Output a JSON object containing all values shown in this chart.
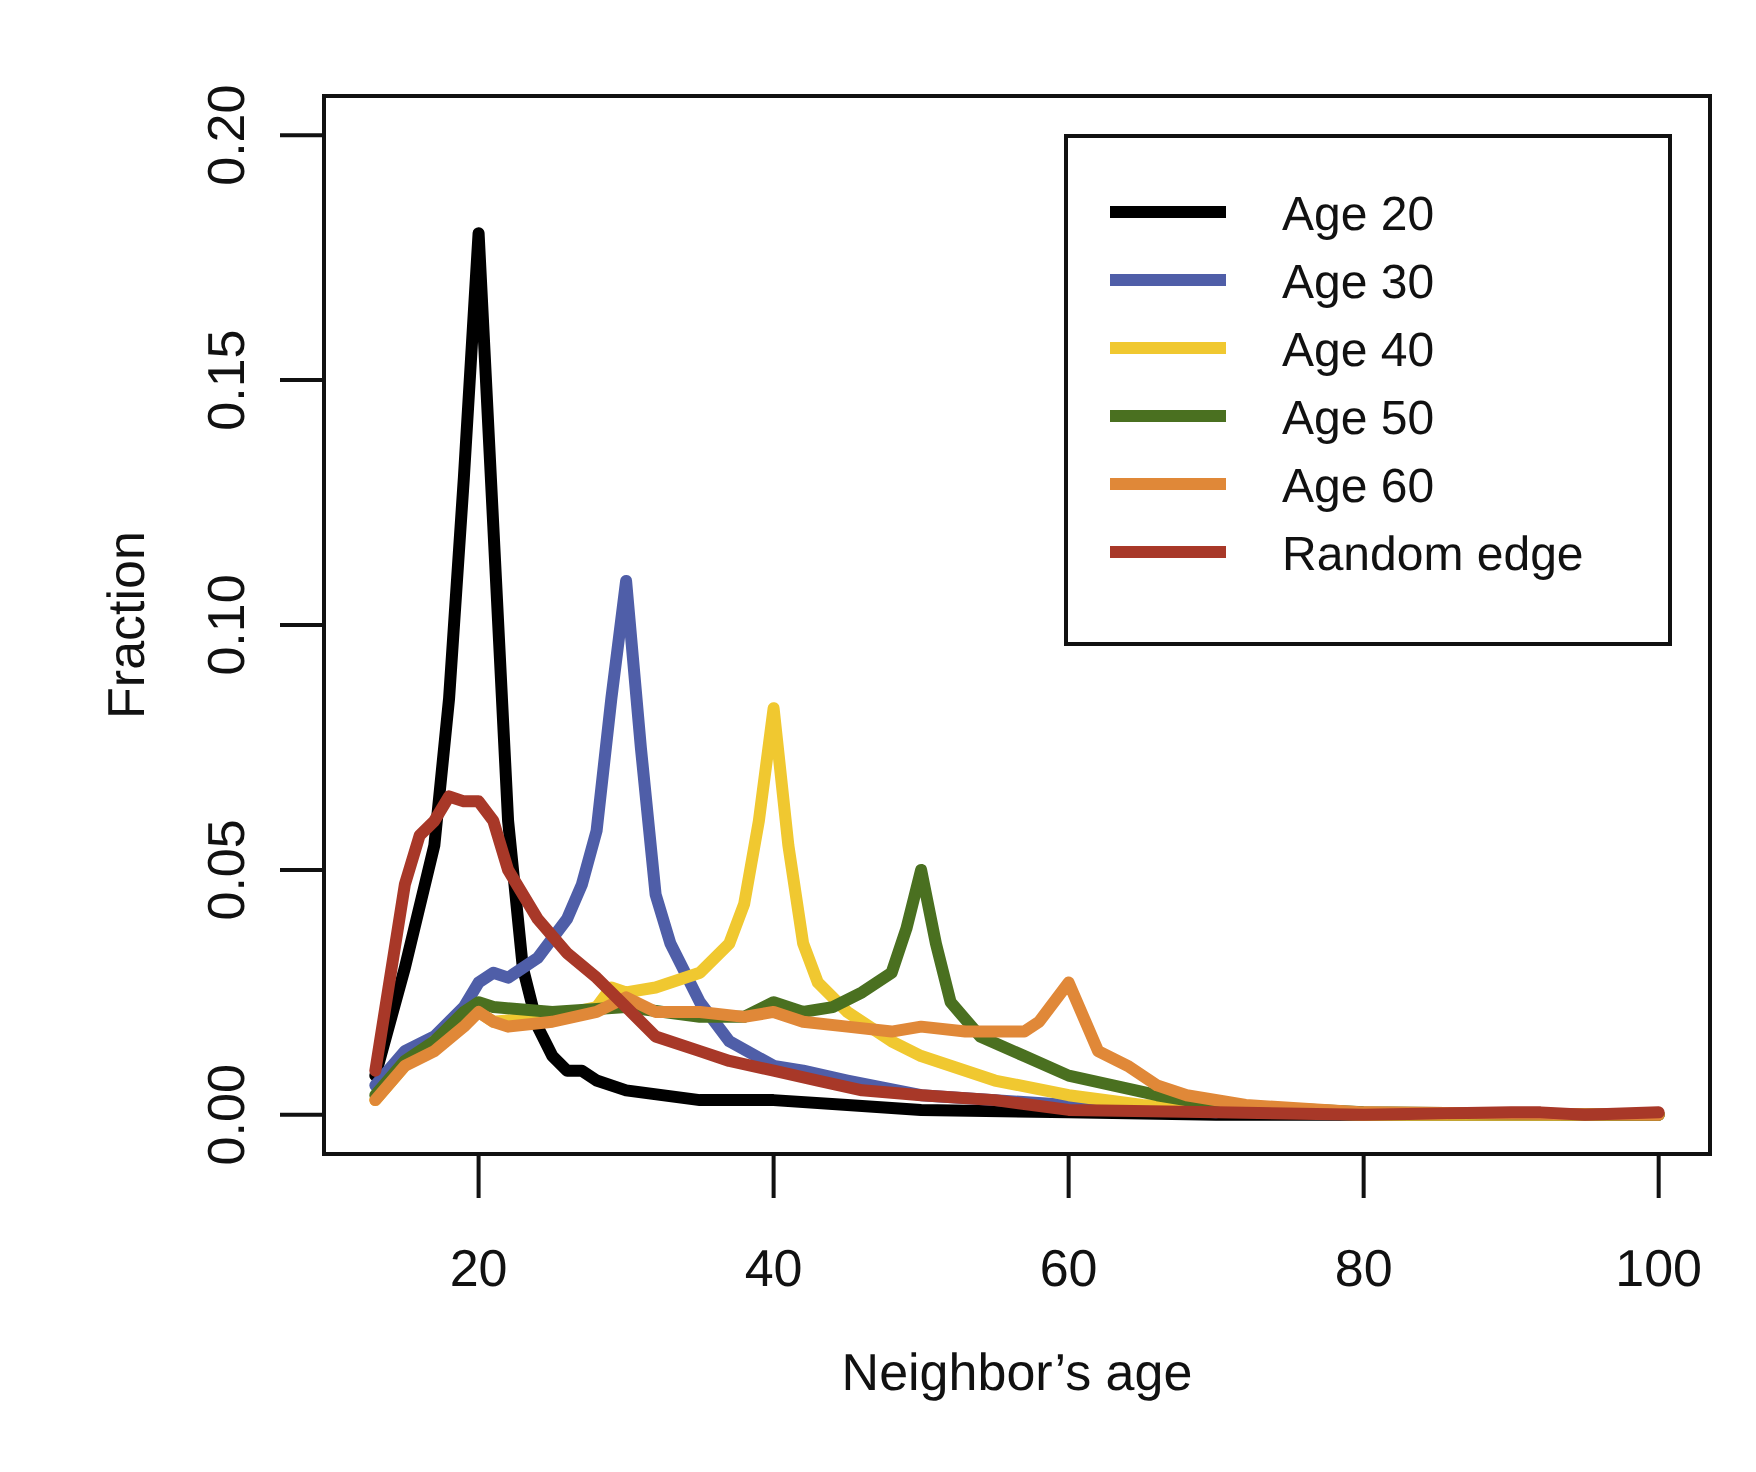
{
  "chart_data": {
    "type": "line",
    "xlabel": "Neighbor’s age",
    "ylabel": "Fraction",
    "xlim": [
      9.52,
      103.48
    ],
    "ylim": [
      -0.008,
      0.208
    ],
    "xticks": [
      20,
      40,
      60,
      80,
      100
    ],
    "yticks": [
      {
        "value": 0,
        "label": "0.00"
      },
      {
        "value": 0.05,
        "label": "0.05"
      },
      {
        "value": 0.1,
        "label": "0.10"
      },
      {
        "value": 0.15,
        "label": "0.15"
      },
      {
        "value": 0.2,
        "label": "0.20"
      }
    ],
    "legend": "top right",
    "grid": false,
    "line_style": "solid",
    "series": [
      {
        "name": "Age 20",
        "color": "#000000",
        "x": [
          13,
          15,
          17,
          18,
          19,
          20,
          21,
          22,
          23,
          24,
          25,
          26,
          27,
          28,
          30,
          35,
          40,
          45,
          50,
          60,
          70,
          100
        ],
        "values": [
          0.008,
          0.03,
          0.055,
          0.085,
          0.13,
          0.18,
          0.12,
          0.06,
          0.03,
          0.018,
          0.012,
          0.009,
          0.009,
          0.007,
          0.005,
          0.003,
          0.003,
          0.002,
          0.001,
          0.0005,
          0,
          0
        ]
      },
      {
        "name": "Age 30",
        "color": "#4f5ea8",
        "x": [
          13,
          15,
          17,
          19,
          20,
          21,
          22,
          24,
          26,
          27,
          28,
          29,
          30,
          31,
          32,
          33,
          35,
          37,
          40,
          42,
          45,
          50,
          55,
          60,
          70
        ],
        "values": [
          0.006,
          0.013,
          0.016,
          0.022,
          0.027,
          0.029,
          0.028,
          0.032,
          0.04,
          0.047,
          0.058,
          0.085,
          0.109,
          0.075,
          0.045,
          0.035,
          0.023,
          0.015,
          0.01,
          0.009,
          0.007,
          0.004,
          0.003,
          0.002,
          0.0005
        ]
      },
      {
        "name": "Age 40",
        "color": "#f0c830",
        "x": [
          13,
          15,
          17,
          19,
          20,
          21,
          25,
          28,
          29,
          30,
          32,
          35,
          37,
          38,
          39,
          40,
          41,
          42,
          43,
          45,
          48,
          50,
          55,
          60,
          65,
          70,
          80,
          100
        ],
        "values": [
          0.003,
          0.01,
          0.015,
          0.019,
          0.021,
          0.019,
          0.02,
          0.022,
          0.026,
          0.025,
          0.026,
          0.029,
          0.035,
          0.043,
          0.06,
          0.083,
          0.055,
          0.035,
          0.027,
          0.021,
          0.015,
          0.012,
          0.007,
          0.004,
          0.002,
          0.001,
          0,
          0
        ]
      },
      {
        "name": "Age 50",
        "color": "#4a7020",
        "x": [
          13,
          15,
          17,
          19,
          20,
          21,
          25,
          30,
          35,
          38,
          40,
          42,
          44,
          46,
          48,
          49,
          50,
          51,
          52,
          54,
          57,
          60,
          63,
          66,
          70,
          80,
          100
        ],
        "values": [
          0.004,
          0.011,
          0.015,
          0.021,
          0.023,
          0.022,
          0.021,
          0.022,
          0.02,
          0.02,
          0.023,
          0.021,
          0.022,
          0.025,
          0.029,
          0.038,
          0.05,
          0.035,
          0.023,
          0.016,
          0.012,
          0.008,
          0.006,
          0.004,
          0.002,
          0.0005,
          0
        ]
      },
      {
        "name": "Age 60",
        "color": "#e08838",
        "x": [
          13,
          15,
          17,
          19,
          20,
          21,
          22,
          25,
          28,
          30,
          32,
          35,
          38,
          40,
          42,
          45,
          48,
          50,
          53,
          57,
          58,
          60,
          61,
          62,
          64,
          66,
          68,
          72,
          80,
          100
        ],
        "values": [
          0.003,
          0.01,
          0.013,
          0.018,
          0.021,
          0.019,
          0.018,
          0.019,
          0.021,
          0.024,
          0.021,
          0.021,
          0.02,
          0.021,
          0.019,
          0.018,
          0.017,
          0.018,
          0.017,
          0.017,
          0.019,
          0.027,
          0.02,
          0.013,
          0.01,
          0.006,
          0.004,
          0.002,
          0.0005,
          0
        ]
      },
      {
        "name": "Random edge",
        "color": "#a83828",
        "x": [
          13,
          14,
          15,
          16,
          17,
          18,
          19,
          20,
          21,
          22,
          24,
          26,
          28,
          30,
          32,
          35,
          37,
          40,
          43,
          46,
          50,
          55,
          60,
          70,
          80,
          90,
          92,
          95,
          100
        ],
        "values": [
          0.009,
          0.028,
          0.047,
          0.057,
          0.06,
          0.065,
          0.064,
          0.064,
          0.06,
          0.05,
          0.04,
          0.033,
          0.028,
          0.022,
          0.016,
          0.013,
          0.011,
          0.009,
          0.007,
          0.005,
          0.004,
          0.003,
          0.001,
          0.0005,
          0,
          0.0005,
          0.0005,
          0,
          0.0005
        ]
      }
    ]
  }
}
